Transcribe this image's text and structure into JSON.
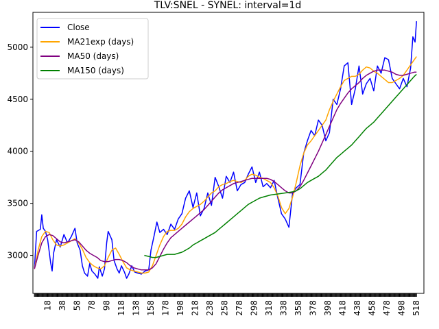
{
  "chart_data": {
    "type": "line",
    "title": "TLV:SNEL - SYNEL: interval=1d",
    "xlabel": "",
    "ylabel": "",
    "xlim": [
      -2,
      528
    ],
    "ylim": [
      2635,
      5335
    ],
    "grid": false,
    "legend_position": "top-left",
    "x_ticks": [
      18,
      38,
      58,
      78,
      98,
      118,
      138,
      158,
      178,
      198,
      218,
      238,
      258,
      278,
      298,
      318,
      338,
      358,
      378,
      398,
      418,
      438,
      458,
      478,
      498,
      518
    ],
    "y_ticks": [
      3000,
      3500,
      4000,
      4500,
      5000
    ],
    "series": [
      {
        "name": "Close",
        "color": "#0000ff",
        "x": [
          0,
          3,
          8,
          10,
          12,
          15,
          18,
          22,
          24,
          26,
          30,
          35,
          40,
          45,
          50,
          55,
          58,
          62,
          65,
          68,
          72,
          75,
          78,
          82,
          86,
          88,
          92,
          95,
          98,
          100,
          105,
          108,
          112,
          115,
          118,
          122,
          125,
          128,
          132,
          136,
          140,
          145,
          150,
          155,
          158,
          162,
          166,
          170,
          175,
          180,
          185,
          190,
          195,
          200,
          205,
          210,
          215,
          220,
          225,
          230,
          235,
          240,
          245,
          250,
          255,
          260,
          265,
          270,
          275,
          280,
          285,
          290,
          295,
          300,
          305,
          310,
          315,
          320,
          325,
          330,
          335,
          340,
          345,
          350,
          355,
          360,
          365,
          370,
          375,
          380,
          385,
          390,
          395,
          400,
          405,
          410,
          415,
          420,
          425,
          430,
          435,
          440,
          445,
          450,
          455,
          460,
          465,
          470,
          475,
          480,
          485,
          490,
          495,
          500,
          505,
          510,
          513,
          516,
          518
        ],
        "values": [
          2870,
          3230,
          3250,
          3390,
          3260,
          3230,
          3150,
          2930,
          2850,
          3020,
          3150,
          3080,
          3200,
          3120,
          3180,
          3260,
          3120,
          3050,
          2900,
          2830,
          2800,
          2920,
          2850,
          2820,
          2780,
          2890,
          2800,
          2870,
          3120,
          3230,
          3150,
          2950,
          2870,
          2830,
          2900,
          2840,
          2780,
          2820,
          2900,
          2840,
          2830,
          2820,
          2850,
          2860,
          3050,
          3180,
          3320,
          3220,
          3250,
          3200,
          3300,
          3250,
          3350,
          3400,
          3550,
          3620,
          3460,
          3600,
          3380,
          3450,
          3600,
          3480,
          3750,
          3660,
          3550,
          3760,
          3700,
          3800,
          3620,
          3680,
          3700,
          3780,
          3850,
          3700,
          3800,
          3660,
          3690,
          3650,
          3720,
          3550,
          3400,
          3350,
          3270,
          3600,
          3650,
          3680,
          3980,
          4100,
          4200,
          4150,
          4300,
          4250,
          4100,
          4180,
          4500,
          4450,
          4600,
          4820,
          4850,
          4450,
          4600,
          4820,
          4550,
          4650,
          4700,
          4580,
          4820,
          4750,
          4900,
          4880,
          4700,
          4650,
          4600,
          4700,
          4620,
          4800,
          5100,
          5050,
          5250
        ]
      },
      {
        "name": "MA21exp (days)",
        "color": "#ffa500",
        "x": [
          0,
          5,
          10,
          15,
          20,
          25,
          30,
          35,
          40,
          45,
          50,
          55,
          60,
          65,
          70,
          75,
          80,
          85,
          90,
          95,
          100,
          105,
          110,
          115,
          120,
          125,
          130,
          135,
          140,
          145,
          150,
          155,
          160,
          165,
          170,
          175,
          180,
          185,
          190,
          195,
          200,
          205,
          210,
          215,
          220,
          225,
          230,
          235,
          240,
          245,
          250,
          255,
          260,
          265,
          270,
          275,
          280,
          285,
          290,
          295,
          300,
          305,
          310,
          315,
          320,
          325,
          330,
          335,
          340,
          345,
          350,
          355,
          360,
          365,
          370,
          375,
          380,
          385,
          390,
          395,
          400,
          405,
          410,
          415,
          420,
          425,
          430,
          435,
          440,
          445,
          450,
          455,
          460,
          465,
          470,
          475,
          480,
          485,
          490,
          495,
          500,
          505,
          510,
          515,
          518
        ],
        "values": [
          2870,
          3050,
          3180,
          3230,
          3220,
          3150,
          3100,
          3090,
          3100,
          3120,
          3140,
          3160,
          3120,
          3060,
          2980,
          2930,
          2900,
          2880,
          2870,
          2900,
          2980,
          3050,
          3070,
          3010,
          2940,
          2880,
          2860,
          2850,
          2840,
          2830,
          2830,
          2840,
          2900,
          3000,
          3100,
          3180,
          3230,
          3240,
          3240,
          3260,
          3300,
          3370,
          3420,
          3450,
          3470,
          3490,
          3520,
          3560,
          3600,
          3620,
          3660,
          3680,
          3690,
          3710,
          3720,
          3710,
          3700,
          3720,
          3760,
          3780,
          3770,
          3750,
          3740,
          3720,
          3700,
          3650,
          3570,
          3460,
          3400,
          3450,
          3560,
          3700,
          3860,
          3980,
          4060,
          4100,
          4150,
          4200,
          4250,
          4300,
          4400,
          4480,
          4550,
          4620,
          4680,
          4700,
          4720,
          4720,
          4740,
          4780,
          4810,
          4800,
          4770,
          4750,
          4720,
          4690,
          4660,
          4660,
          4680,
          4700,
          4730,
          4780,
          4830,
          4880,
          4910
        ]
      },
      {
        "name": "MA50 (days)",
        "color": "#800080",
        "x": [
          0,
          5,
          10,
          15,
          20,
          25,
          30,
          35,
          40,
          45,
          50,
          55,
          60,
          65,
          70,
          75,
          80,
          85,
          90,
          95,
          100,
          105,
          110,
          115,
          120,
          125,
          130,
          135,
          140,
          145,
          150,
          155,
          160,
          165,
          170,
          175,
          180,
          185,
          190,
          195,
          200,
          205,
          210,
          215,
          220,
          225,
          230,
          235,
          240,
          245,
          250,
          255,
          260,
          265,
          270,
          275,
          280,
          285,
          290,
          295,
          300,
          305,
          310,
          315,
          320,
          325,
          330,
          335,
          340,
          345,
          350,
          355,
          360,
          365,
          370,
          375,
          380,
          385,
          390,
          395,
          400,
          405,
          410,
          415,
          420,
          425,
          430,
          435,
          440,
          445,
          450,
          455,
          460,
          465,
          470,
          475,
          480,
          485,
          490,
          495,
          500,
          505,
          510,
          515,
          518
        ],
        "values": [
          2870,
          3000,
          3120,
          3180,
          3200,
          3190,
          3160,
          3130,
          3120,
          3130,
          3140,
          3150,
          3130,
          3090,
          3050,
          3020,
          3000,
          2980,
          2950,
          2940,
          2940,
          2950,
          2960,
          2960,
          2950,
          2930,
          2900,
          2880,
          2870,
          2860,
          2860,
          2860,
          2880,
          2920,
          2990,
          3060,
          3120,
          3170,
          3200,
          3230,
          3260,
          3290,
          3320,
          3350,
          3380,
          3410,
          3440,
          3480,
          3520,
          3560,
          3600,
          3630,
          3650,
          3670,
          3690,
          3700,
          3710,
          3720,
          3730,
          3740,
          3740,
          3740,
          3740,
          3740,
          3730,
          3710,
          3680,
          3650,
          3620,
          3600,
          3600,
          3620,
          3660,
          3720,
          3790,
          3860,
          3930,
          4000,
          4080,
          4160,
          4240,
          4320,
          4400,
          4460,
          4510,
          4560,
          4600,
          4630,
          4660,
          4700,
          4730,
          4750,
          4770,
          4780,
          4780,
          4780,
          4770,
          4760,
          4740,
          4730,
          4730,
          4740,
          4750,
          4760,
          4760
        ]
      },
      {
        "name": "MA150 (days)",
        "color": "#008000",
        "x": [
          149,
          155,
          160,
          165,
          170,
          175,
          180,
          185,
          190,
          195,
          200,
          205,
          210,
          215,
          220,
          225,
          230,
          235,
          240,
          245,
          250,
          255,
          260,
          265,
          270,
          275,
          280,
          285,
          290,
          295,
          300,
          305,
          310,
          315,
          320,
          325,
          330,
          335,
          340,
          345,
          350,
          355,
          360,
          365,
          370,
          375,
          380,
          385,
          390,
          395,
          400,
          405,
          410,
          415,
          420,
          425,
          430,
          435,
          440,
          445,
          450,
          455,
          460,
          465,
          470,
          475,
          480,
          485,
          490,
          495,
          500,
          505,
          510,
          515,
          518
        ],
        "values": [
          3000,
          2990,
          2980,
          2980,
          2990,
          3000,
          3010,
          3010,
          3010,
          3020,
          3030,
          3050,
          3070,
          3100,
          3120,
          3140,
          3160,
          3180,
          3200,
          3220,
          3250,
          3280,
          3310,
          3340,
          3370,
          3400,
          3430,
          3460,
          3490,
          3510,
          3530,
          3550,
          3560,
          3570,
          3580,
          3585,
          3590,
          3595,
          3600,
          3605,
          3610,
          3620,
          3640,
          3670,
          3700,
          3720,
          3740,
          3760,
          3790,
          3820,
          3860,
          3900,
          3940,
          3970,
          4000,
          4030,
          4060,
          4100,
          4140,
          4180,
          4220,
          4250,
          4280,
          4320,
          4360,
          4400,
          4440,
          4480,
          4520,
          4560,
          4600,
          4640,
          4680,
          4720,
          4740
        ]
      }
    ]
  }
}
